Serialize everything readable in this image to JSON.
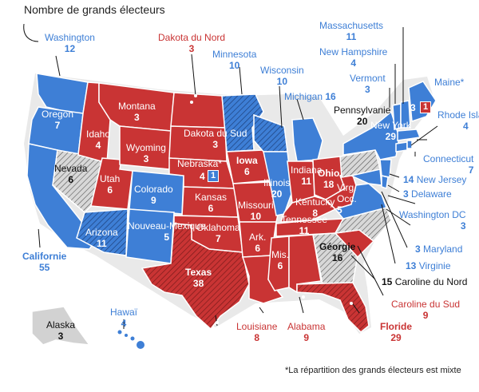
{
  "title": "Nombre de grands électeurs",
  "footnote": "*La répartition des grands électeurs est mixte",
  "colors": {
    "dem": "#3e7fd6",
    "rep": "#c93434",
    "tossup": "#cfcfcf",
    "text_dem": "#3e7fd6",
    "text_rep": "#c93434"
  },
  "states": {
    "washington": {
      "name": "Washington",
      "votes": "12"
    },
    "oregon": {
      "name": "Oregon",
      "votes": "7"
    },
    "california": {
      "name": "Californie",
      "votes": "55"
    },
    "nevada": {
      "name": "Nevada",
      "votes": "6"
    },
    "idaho": {
      "name": "Idaho",
      "votes": "4"
    },
    "utah": {
      "name": "Utah",
      "votes": "6"
    },
    "arizona": {
      "name": "Arizona",
      "votes": "11"
    },
    "montana": {
      "name": "Montana",
      "votes": "3"
    },
    "wyoming": {
      "name": "Wyoming",
      "votes": "3"
    },
    "colorado": {
      "name": "Colorado",
      "votes": "9"
    },
    "newmexico": {
      "name": "Nouveau-Mexique",
      "votes": "5"
    },
    "northdakota": {
      "name": "Dakota du Nord",
      "votes": "3"
    },
    "southdakota": {
      "name": "Dakota du Sud",
      "votes": "3"
    },
    "nebraska": {
      "name": "Nebraska*",
      "votes": "4",
      "split": "1"
    },
    "kansas": {
      "name": "Kansas",
      "votes": "6"
    },
    "oklahoma": {
      "name": "Oklahoma",
      "votes": "7"
    },
    "texas": {
      "name": "Texas",
      "votes": "38"
    },
    "minnesota": {
      "name": "Minnesota",
      "votes": "10"
    },
    "iowa": {
      "name": "Iowa",
      "votes": "6"
    },
    "missouri": {
      "name": "Missouri",
      "votes": "10"
    },
    "arkansas": {
      "name": "Ark.",
      "votes": "6"
    },
    "louisiana": {
      "name": "Louisiane",
      "votes": "8"
    },
    "wisconsin": {
      "name": "Wisconsin",
      "votes": "10"
    },
    "illinois": {
      "name": "Illinois",
      "votes": "20"
    },
    "mississippi": {
      "name": "Mis.",
      "votes": "6"
    },
    "michigan": {
      "name": "Michigan",
      "votes": "16"
    },
    "indiana": {
      "name": "Indiana",
      "votes": "11"
    },
    "kentucky": {
      "name": "Kentucky",
      "votes": "8"
    },
    "tennessee": {
      "name": "Tennessee",
      "votes": "11"
    },
    "alabama": {
      "name": "Alabama",
      "votes": "9"
    },
    "ohio": {
      "name": "Ohio",
      "votes": "18"
    },
    "westvirginia": {
      "name": "Virg. Occ.",
      "votes": "5"
    },
    "georgia": {
      "name": "Géorgie",
      "votes": "16"
    },
    "florida": {
      "name": "Floride",
      "votes": "29"
    },
    "southcarolina": {
      "name": "Caroline du Sud",
      "votes": "9"
    },
    "northcarolina": {
      "name": "Caroline du Nord",
      "votes": "15"
    },
    "virginia": {
      "name": "Virginie",
      "votes": "13"
    },
    "pennsylvania": {
      "name": "Pennsylvanie",
      "votes": "20"
    },
    "newyork": {
      "name": "New York",
      "votes": "29"
    },
    "maryland": {
      "name": "Maryland",
      "votes": "3"
    },
    "delaware": {
      "name": "Delaware",
      "votes": "3"
    },
    "newjersey": {
      "name": "New Jersey",
      "votes": "14"
    },
    "dc": {
      "name": "Washington DC",
      "votes": "3"
    },
    "connecticut": {
      "name": "Connecticut",
      "votes": "7"
    },
    "rhodeisland": {
      "name": "Rhode Island",
      "votes": "4"
    },
    "massachusetts": {
      "name": "Massachusetts",
      "votes": "11"
    },
    "vermont": {
      "name": "Vermont",
      "votes": "3"
    },
    "newhampshire": {
      "name": "New Hampshire",
      "votes": "4"
    },
    "maine": {
      "name": "Maine*",
      "votes": "3",
      "split": "1"
    },
    "alaska": {
      "name": "Alaska",
      "votes": "3"
    },
    "hawaii": {
      "name": "Hawaï",
      "votes": "4"
    }
  }
}
